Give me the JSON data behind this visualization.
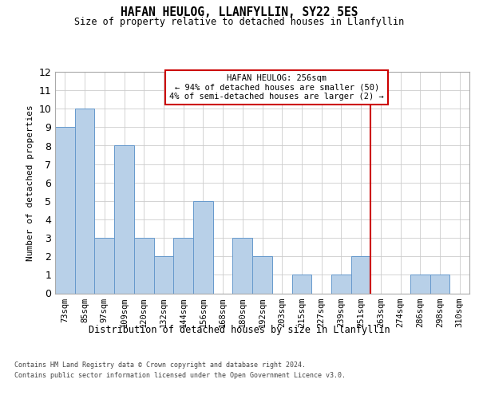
{
  "title": "HAFAN HEULOG, LLANFYLLIN, SY22 5ES",
  "subtitle": "Size of property relative to detached houses in Llanfyllin",
  "xlabel": "Distribution of detached houses by size in Llanfyllin",
  "ylabel": "Number of detached properties",
  "categories": [
    "73sqm",
    "85sqm",
    "97sqm",
    "109sqm",
    "120sqm",
    "132sqm",
    "144sqm",
    "156sqm",
    "168sqm",
    "180sqm",
    "192sqm",
    "203sqm",
    "215sqm",
    "227sqm",
    "239sqm",
    "251sqm",
    "263sqm",
    "274sqm",
    "286sqm",
    "298sqm",
    "310sqm"
  ],
  "values": [
    9,
    10,
    3,
    8,
    3,
    2,
    3,
    5,
    0,
    3,
    2,
    0,
    1,
    0,
    1,
    2,
    0,
    0,
    1,
    1,
    0
  ],
  "bar_color": "#b8d0e8",
  "bar_edge_color": "#6699cc",
  "grid_color": "#cccccc",
  "vline_x_index": 15,
  "vline_color": "#cc0000",
  "annotation_text": "HAFAN HEULOG: 256sqm\n← 94% of detached houses are smaller (50)\n4% of semi-detached houses are larger (2) →",
  "annotation_box_color": "#cc0000",
  "footer_line1": "Contains HM Land Registry data © Crown copyright and database right 2024.",
  "footer_line2": "Contains public sector information licensed under the Open Government Licence v3.0.",
  "ylim": [
    0,
    12
  ],
  "yticks": [
    0,
    1,
    2,
    3,
    4,
    5,
    6,
    7,
    8,
    9,
    10,
    11,
    12
  ]
}
